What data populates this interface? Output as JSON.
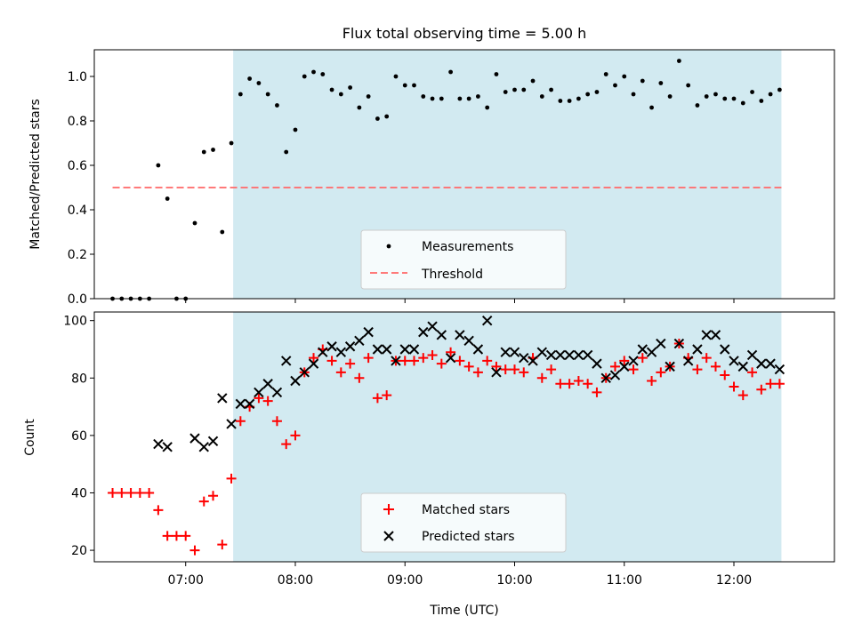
{
  "chart_data": [
    {
      "type": "scatter",
      "title": "Flux total observing time = 5.00 h",
      "ylabel": "Matched/Predicted stars",
      "xlabel": "",
      "ylim": [
        0,
        1.12
      ],
      "xlim": [
        "06:10",
        "12:55"
      ],
      "x_ticks": [
        "07:00",
        "08:00",
        "09:00",
        "10:00",
        "11:00",
        "12:00"
      ],
      "y_ticks": [
        "0.0",
        "0.2",
        "0.4",
        "0.6",
        "0.8",
        "1.0"
      ],
      "observing_window": [
        "07:26",
        "12:26"
      ],
      "threshold": {
        "name": "Threshold",
        "value": 0.5,
        "x_range": [
          "06:20",
          "12:26"
        ]
      },
      "legend_position": "lower center",
      "series": [
        {
          "name": "Measurements",
          "marker": "dot",
          "x": [
            "06:20",
            "06:25",
            "06:30",
            "06:35",
            "06:40",
            "06:45",
            "06:50",
            "06:55",
            "07:00",
            "07:05",
            "07:10",
            "07:15",
            "07:20",
            "07:25",
            "07:30",
            "07:35",
            "07:40",
            "07:45",
            "07:50",
            "07:55",
            "08:00",
            "08:05",
            "08:10",
            "08:15",
            "08:20",
            "08:25",
            "08:30",
            "08:35",
            "08:40",
            "08:45",
            "08:50",
            "08:55",
            "09:00",
            "09:05",
            "09:10",
            "09:15",
            "09:20",
            "09:25",
            "09:30",
            "09:35",
            "09:40",
            "09:45",
            "09:50",
            "09:55",
            "10:00",
            "10:05",
            "10:10",
            "10:15",
            "10:20",
            "10:25",
            "10:30",
            "10:35",
            "10:40",
            "10:45",
            "10:50",
            "10:55",
            "11:00",
            "11:05",
            "11:10",
            "11:15",
            "11:20",
            "11:25",
            "11:30",
            "11:35",
            "11:40",
            "11:45",
            "11:50",
            "11:55",
            "12:00",
            "12:05",
            "12:10",
            "12:15",
            "12:20",
            "12:25"
          ],
          "y": [
            0,
            0,
            0,
            0,
            0,
            0.6,
            0.45,
            0,
            0,
            0.34,
            0.66,
            0.67,
            0.3,
            0.7,
            0.92,
            0.99,
            0.97,
            0.92,
            0.87,
            0.66,
            0.76,
            1.0,
            1.02,
            1.01,
            0.94,
            0.92,
            0.95,
            0.86,
            0.91,
            0.81,
            0.82,
            1.0,
            0.96,
            0.96,
            0.91,
            0.9,
            0.9,
            1.02,
            0.9,
            0.9,
            0.91,
            0.86,
            1.01,
            0.93,
            0.94,
            0.94,
            0.98,
            0.91,
            0.94,
            0.89,
            0.89,
            0.9,
            0.92,
            0.93,
            1.01,
            0.96,
            1.0,
            0.92,
            0.98,
            0.86,
            0.97,
            0.91,
            1.07,
            0.96,
            0.87,
            0.91,
            0.92,
            0.9,
            0.9,
            0.88,
            0.93,
            0.89,
            0.92,
            0.94
          ]
        }
      ]
    },
    {
      "type": "scatter",
      "title": "",
      "ylabel": "Count",
      "xlabel": "Time (UTC)",
      "ylim": [
        16,
        103
      ],
      "xlim": [
        "06:10",
        "12:55"
      ],
      "x_ticks": [
        "07:00",
        "08:00",
        "09:00",
        "10:00",
        "11:00",
        "12:00"
      ],
      "y_ticks": [
        "20",
        "40",
        "60",
        "80",
        "100"
      ],
      "observing_window": [
        "07:26",
        "12:26"
      ],
      "legend_position": "lower center",
      "series": [
        {
          "name": "Matched stars",
          "marker": "plus",
          "color": "#ff0000",
          "x": [
            "06:20",
            "06:25",
            "06:30",
            "06:35",
            "06:40",
            "06:45",
            "06:50",
            "06:55",
            "07:00",
            "07:05",
            "07:10",
            "07:15",
            "07:20",
            "07:25",
            "07:30",
            "07:35",
            "07:40",
            "07:45",
            "07:50",
            "07:55",
            "08:00",
            "08:05",
            "08:10",
            "08:15",
            "08:20",
            "08:25",
            "08:30",
            "08:35",
            "08:40",
            "08:45",
            "08:50",
            "08:55",
            "09:00",
            "09:05",
            "09:10",
            "09:15",
            "09:20",
            "09:25",
            "09:30",
            "09:35",
            "09:40",
            "09:45",
            "09:50",
            "09:55",
            "10:00",
            "10:05",
            "10:10",
            "10:15",
            "10:20",
            "10:25",
            "10:30",
            "10:35",
            "10:40",
            "10:45",
            "10:50",
            "10:55",
            "11:00",
            "11:05",
            "11:10",
            "11:15",
            "11:20",
            "11:25",
            "11:30",
            "11:35",
            "11:40",
            "11:45",
            "11:50",
            "11:55",
            "12:00",
            "12:05",
            "12:10",
            "12:15",
            "12:20",
            "12:25"
          ],
          "y": [
            40,
            40,
            40,
            40,
            40,
            34,
            25,
            25,
            25,
            20,
            37,
            39,
            22,
            45,
            65,
            70,
            73,
            72,
            65,
            57,
            60,
            82,
            87,
            90,
            86,
            82,
            85,
            80,
            87,
            73,
            74,
            86,
            86,
            86,
            87,
            88,
            85,
            89,
            86,
            84,
            82,
            86,
            84,
            83,
            83,
            82,
            87,
            80,
            83,
            78,
            78,
            79,
            78,
            75,
            80,
            84,
            86,
            83,
            87,
            79,
            82,
            84,
            92,
            87,
            83,
            87,
            84,
            81,
            77,
            74,
            82,
            76,
            78,
            78
          ]
        },
        {
          "name": "Predicted stars",
          "marker": "x",
          "color": "#000000",
          "x": [
            "06:45",
            "06:50",
            "07:05",
            "07:10",
            "07:15",
            "07:20",
            "07:25",
            "07:30",
            "07:35",
            "07:40",
            "07:45",
            "07:50",
            "07:55",
            "08:00",
            "08:05",
            "08:10",
            "08:15",
            "08:20",
            "08:25",
            "08:30",
            "08:35",
            "08:40",
            "08:45",
            "08:50",
            "08:55",
            "09:00",
            "09:05",
            "09:10",
            "09:15",
            "09:20",
            "09:25",
            "09:30",
            "09:35",
            "09:40",
            "09:45",
            "09:50",
            "09:55",
            "10:00",
            "10:05",
            "10:10",
            "10:15",
            "10:20",
            "10:25",
            "10:30",
            "10:35",
            "10:40",
            "10:45",
            "10:50",
            "10:55",
            "11:00",
            "11:05",
            "11:10",
            "11:15",
            "11:20",
            "11:25",
            "11:30",
            "11:35",
            "11:40",
            "11:45",
            "11:50",
            "11:55",
            "12:00",
            "12:05",
            "12:10",
            "12:15",
            "12:20",
            "12:25"
          ],
          "y": [
            57,
            56,
            59,
            56,
            58,
            73,
            64,
            71,
            71,
            75,
            78,
            75,
            86,
            79,
            82,
            85,
            89,
            91,
            89,
            91,
            93,
            96,
            90,
            90,
            86,
            90,
            90,
            96,
            98,
            95,
            87,
            95,
            93,
            90,
            100,
            82,
            89,
            89,
            87,
            86,
            89,
            88,
            88,
            88,
            88,
            88,
            85,
            80,
            81,
            84,
            86,
            90,
            89,
            92,
            84,
            92,
            86,
            90,
            95,
            95,
            90,
            86,
            84,
            88,
            85,
            85,
            83
          ]
        }
      ]
    }
  ]
}
